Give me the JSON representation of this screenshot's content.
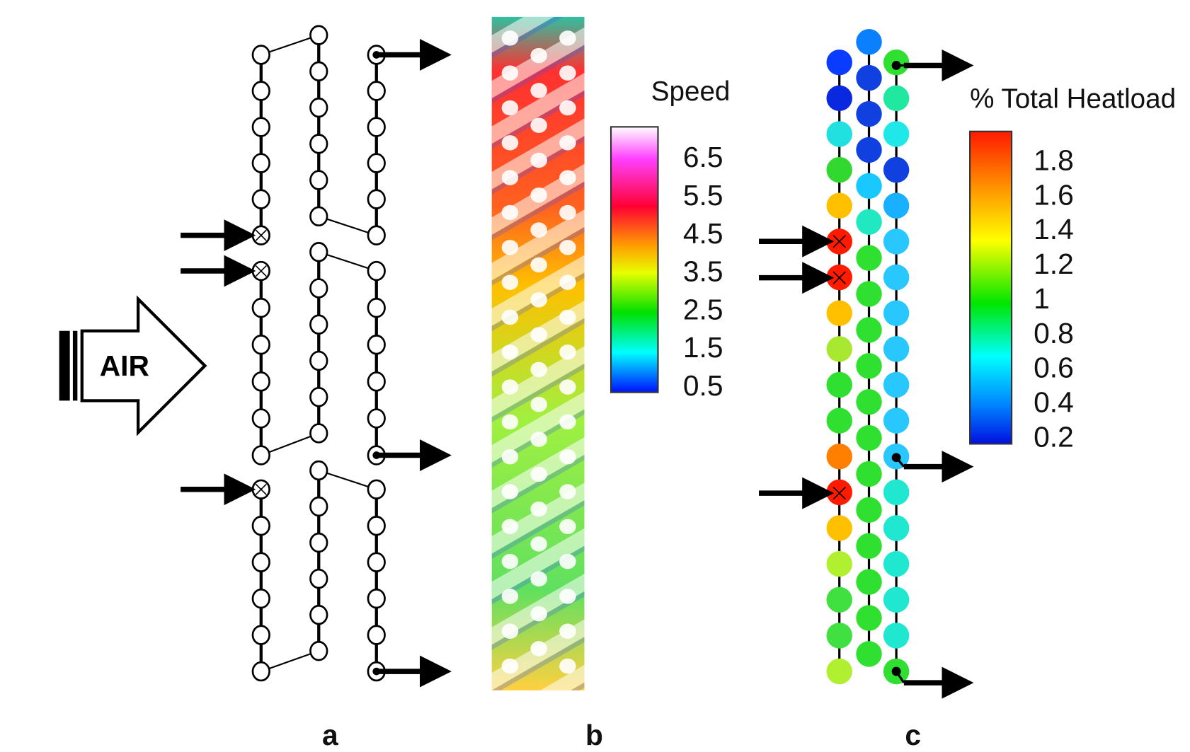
{
  "panels": [
    {
      "label": "a",
      "inlet_label": "AIR"
    },
    {
      "label": "b",
      "colorbar": {
        "title": "Speed",
        "ticks": [
          "6.5",
          "5.5",
          "4.5",
          "3.5",
          "2.5",
          "1.5",
          "0.5"
        ]
      }
    },
    {
      "label": "c",
      "colorbar": {
        "title": "% Total Heatload",
        "ticks": [
          "1.8",
          "1.6",
          "1.4",
          "1.2",
          "1",
          "0.8",
          "0.6",
          "0.4",
          "0.2"
        ]
      }
    }
  ]
}
